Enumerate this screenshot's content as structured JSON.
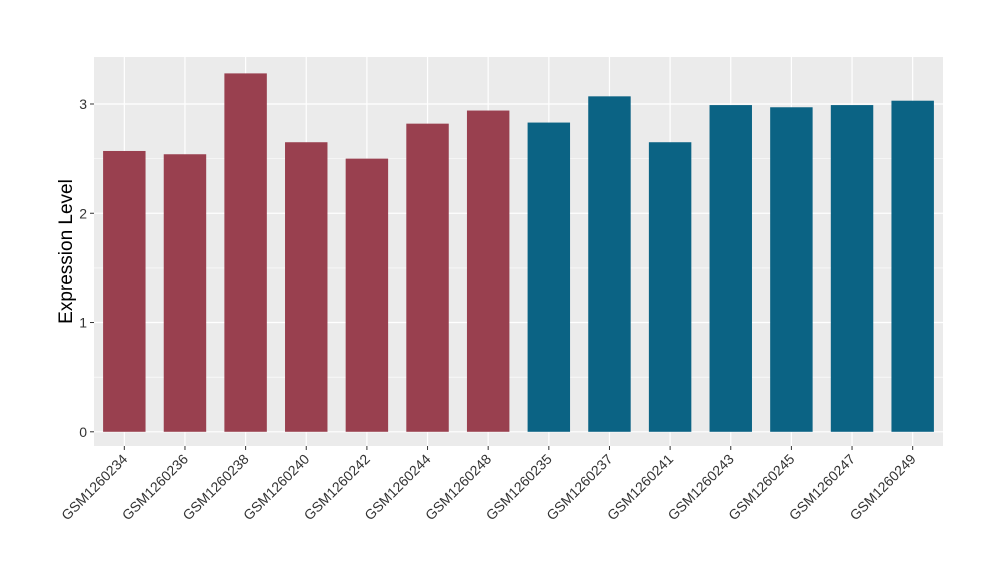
{
  "chart_data": {
    "type": "bar",
    "title": "",
    "xlabel": "",
    "ylabel": "Expression Level",
    "ylim": [
      -0.13,
      3.43
    ],
    "yticks": [
      0,
      1,
      2,
      3
    ],
    "grid": true,
    "legend": "none",
    "categories": [
      "GSM1260234",
      "GSM1260236",
      "GSM1260238",
      "GSM1260240",
      "GSM1260242",
      "GSM1260244",
      "GSM1260248",
      "GSM1260235",
      "GSM1260237",
      "GSM1260241",
      "GSM1260243",
      "GSM1260245",
      "GSM1260247",
      "GSM1260249"
    ],
    "values": [
      2.57,
      2.54,
      3.28,
      2.65,
      2.5,
      2.82,
      2.94,
      2.83,
      3.07,
      2.65,
      2.99,
      2.97,
      2.99,
      3.03
    ],
    "bar_groups": [
      0,
      0,
      0,
      0,
      0,
      0,
      0,
      1,
      1,
      1,
      1,
      1,
      1,
      1
    ],
    "group_colors": [
      "#99404f",
      "#0b6384"
    ],
    "panel_color": "#ebebeb",
    "grid_color": "#ffffff"
  }
}
